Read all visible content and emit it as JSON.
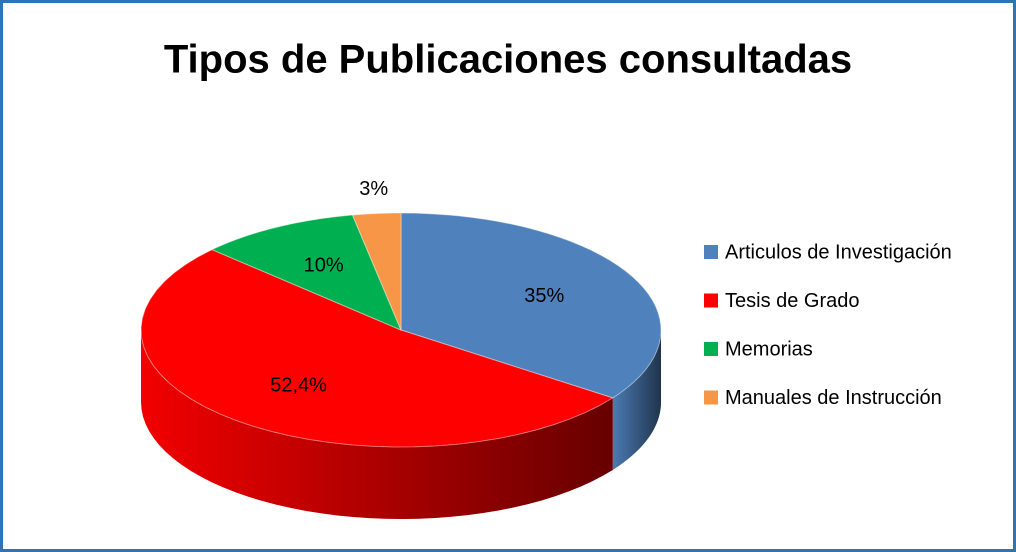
{
  "chart_data": {
    "type": "pie",
    "title": "Tipos de Publicaciones consultadas",
    "categories": [
      "Articulos de Investigación",
      "Tesis de Grado",
      "Memorias",
      "Manuales de Instrucción"
    ],
    "values": [
      35,
      52.4,
      10,
      3
    ],
    "value_labels": [
      "35%",
      "52,4%",
      "10%",
      "3%"
    ],
    "colors": [
      "#4f81bd",
      "#ff0000",
      "#00b050",
      "#f79646"
    ],
    "legend": "right"
  }
}
